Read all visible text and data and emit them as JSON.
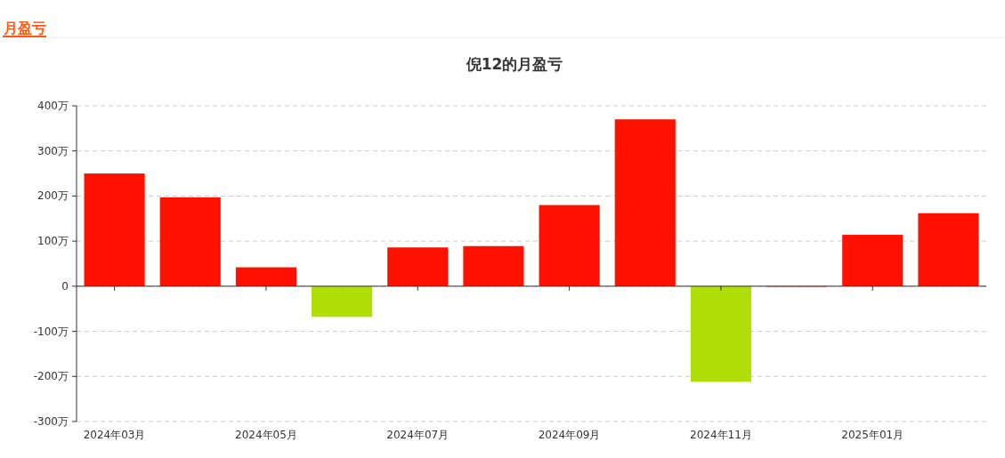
{
  "chart_data": {
    "type": "bar",
    "title": "倪12的月盈亏",
    "annotations": [
      "月盈亏"
    ],
    "categories": [
      "2024年03月",
      null,
      "2024年05月",
      null,
      "2024年07月",
      null,
      "2024年09月",
      null,
      "2024年11月",
      null,
      "2025年01月",
      null
    ],
    "values": [
      250,
      197,
      42,
      -68,
      86,
      89,
      180,
      370,
      -212,
      0,
      114,
      162
    ],
    "colors": [
      "#ff1100",
      "#ff1100",
      "#ff1100",
      "#b0de09",
      "#ff1100",
      "#ff1100",
      "#ff1100",
      "#ff1100",
      "#b0de09",
      "#ff1100",
      "#ff1100",
      "#ff1100"
    ],
    "ylim": [
      -300,
      400
    ],
    "yticks": [
      {
        "value": -300,
        "label": "-300万"
      },
      {
        "value": -200,
        "label": "-200万"
      },
      {
        "value": -100,
        "label": "-100万"
      },
      0,
      {
        "value": 100,
        "label": "100万"
      },
      {
        "value": 200,
        "label": "200万"
      },
      {
        "value": 300,
        "label": "300万"
      },
      {
        "value": 400,
        "label": "400万"
      }
    ],
    "grid": "y"
  }
}
